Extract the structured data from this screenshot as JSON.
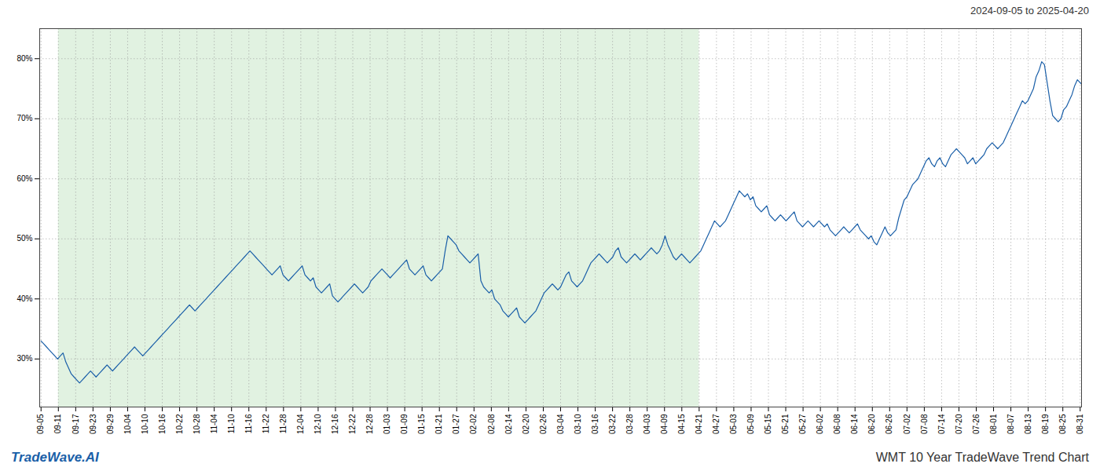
{
  "chart_data": {
    "type": "line",
    "title": "WMT 10 Year TradeWave Trend Chart",
    "subtitle": "2024-09-05 to 2025-04-20",
    "annotations": [
      {
        "text": "TradeWave.AI",
        "color": "#1a5fa8"
      }
    ],
    "color": "#1a5fa8",
    "grid": true,
    "shade": {
      "start": 6.3,
      "end": 239.4,
      "color": "#d4ecd4"
    },
    "ylim": [
      22,
      85
    ],
    "yticks": [
      {
        "value": 30,
        "label": "30%"
      },
      {
        "value": 40,
        "label": "40%"
      },
      {
        "value": 50,
        "label": "50%"
      },
      {
        "value": 60,
        "label": "60%"
      },
      {
        "value": 70,
        "label": "70%"
      },
      {
        "value": 80,
        "label": "80%"
      }
    ],
    "xlim": [
      -0.5,
      378.5
    ],
    "xticks": [
      {
        "value": 0,
        "label": "09-05"
      },
      {
        "value": 6.3,
        "label": "09-11"
      },
      {
        "value": 12.6,
        "label": "09-17"
      },
      {
        "value": 18.9,
        "label": "09-23"
      },
      {
        "value": 25.2,
        "label": "09-29"
      },
      {
        "value": 31.5,
        "label": "10-04"
      },
      {
        "value": 37.8,
        "label": "10-10"
      },
      {
        "value": 44.1,
        "label": "10-16"
      },
      {
        "value": 50.4,
        "label": "10-22"
      },
      {
        "value": 56.7,
        "label": "10-28"
      },
      {
        "value": 63,
        "label": "11-04"
      },
      {
        "value": 69.3,
        "label": "11-10"
      },
      {
        "value": 75.6,
        "label": "11-16"
      },
      {
        "value": 81.9,
        "label": "11-22"
      },
      {
        "value": 88.2,
        "label": "11-28"
      },
      {
        "value": 94.5,
        "label": "12-04"
      },
      {
        "value": 100.8,
        "label": "12-10"
      },
      {
        "value": 107.1,
        "label": "12-16"
      },
      {
        "value": 113.4,
        "label": "12-22"
      },
      {
        "value": 119.7,
        "label": "12-28"
      },
      {
        "value": 126,
        "label": "01-03"
      },
      {
        "value": 132.3,
        "label": "01-09"
      },
      {
        "value": 138.6,
        "label": "01-15"
      },
      {
        "value": 144.9,
        "label": "01-21"
      },
      {
        "value": 151.2,
        "label": "01-27"
      },
      {
        "value": 157.5,
        "label": "02-02"
      },
      {
        "value": 163.8,
        "label": "02-08"
      },
      {
        "value": 170.1,
        "label": "02-14"
      },
      {
        "value": 176.4,
        "label": "02-20"
      },
      {
        "value": 182.7,
        "label": "02-26"
      },
      {
        "value": 189,
        "label": "03-04"
      },
      {
        "value": 195.3,
        "label": "03-10"
      },
      {
        "value": 201.6,
        "label": "03-16"
      },
      {
        "value": 207.9,
        "label": "03-22"
      },
      {
        "value": 214.2,
        "label": "03-28"
      },
      {
        "value": 220.5,
        "label": "04-03"
      },
      {
        "value": 226.8,
        "label": "04-09"
      },
      {
        "value": 233.1,
        "label": "04-15"
      },
      {
        "value": 239.4,
        "label": "04-21"
      },
      {
        "value": 245.7,
        "label": "04-27"
      },
      {
        "value": 252,
        "label": "05-03"
      },
      {
        "value": 258.3,
        "label": "05-09"
      },
      {
        "value": 264.6,
        "label": "05-15"
      },
      {
        "value": 270.9,
        "label": "05-21"
      },
      {
        "value": 277.2,
        "label": "05-27"
      },
      {
        "value": 283.5,
        "label": "06-02"
      },
      {
        "value": 289.8,
        "label": "06-08"
      },
      {
        "value": 296.1,
        "label": "06-14"
      },
      {
        "value": 302.4,
        "label": "06-20"
      },
      {
        "value": 308.7,
        "label": "06-26"
      },
      {
        "value": 315,
        "label": "07-02"
      },
      {
        "value": 321.3,
        "label": "07-08"
      },
      {
        "value": 327.6,
        "label": "07-14"
      },
      {
        "value": 333.9,
        "label": "07-20"
      },
      {
        "value": 340.2,
        "label": "07-26"
      },
      {
        "value": 346.5,
        "label": "08-01"
      },
      {
        "value": 352.8,
        "label": "08-07"
      },
      {
        "value": 359.1,
        "label": "08-13"
      },
      {
        "value": 365.4,
        "label": "08-19"
      },
      {
        "value": 371.7,
        "label": "08-25"
      },
      {
        "value": 378,
        "label": "08-31"
      }
    ],
    "values": [
      33.0,
      32.5,
      32.0,
      31.5,
      31.0,
      30.5,
      30.0,
      30.5,
      31.0,
      29.5,
      28.5,
      27.5,
      27.0,
      26.5,
      26.0,
      26.5,
      27.0,
      27.5,
      28.0,
      27.5,
      27.0,
      27.5,
      28.0,
      28.5,
      29.0,
      28.5,
      28.0,
      28.5,
      29.0,
      29.5,
      30.0,
      30.5,
      31.0,
      31.5,
      32.0,
      31.5,
      31.0,
      30.5,
      31.0,
      31.5,
      32.0,
      32.5,
      33.0,
      33.5,
      34.0,
      34.5,
      35.0,
      35.5,
      36.0,
      36.5,
      37.0,
      37.5,
      38.0,
      38.5,
      39.0,
      38.5,
      38.0,
      38.5,
      39.0,
      39.5,
      40.0,
      40.5,
      41.0,
      41.5,
      42.0,
      42.5,
      43.0,
      43.5,
      44.0,
      44.5,
      45.0,
      45.5,
      46.0,
      46.5,
      47.0,
      47.5,
      48.0,
      47.5,
      47.0,
      46.5,
      46.0,
      45.5,
      45.0,
      44.5,
      44.0,
      44.5,
      45.0,
      45.5,
      44.0,
      43.5,
      43.0,
      43.5,
      44.0,
      44.5,
      45.0,
      45.5,
      44.0,
      43.5,
      43.0,
      43.5,
      42.0,
      41.5,
      41.0,
      41.5,
      42.0,
      42.5,
      40.5,
      40.0,
      39.5,
      40.0,
      40.5,
      41.0,
      41.5,
      42.0,
      42.5,
      42.0,
      41.5,
      41.0,
      41.5,
      42.0,
      43.0,
      43.5,
      44.0,
      44.5,
      45.0,
      44.5,
      44.0,
      43.5,
      44.0,
      44.5,
      45.0,
      45.5,
      46.0,
      46.5,
      45.0,
      44.5,
      44.0,
      44.5,
      45.0,
      45.5,
      44.0,
      43.5,
      43.0,
      43.5,
      44.0,
      44.5,
      45.0,
      48.0,
      50.5,
      50.0,
      49.5,
      49.0,
      48.0,
      47.5,
      47.0,
      46.5,
      46.0,
      46.5,
      47.0,
      47.5,
      43.0,
      42.0,
      41.5,
      41.0,
      41.5,
      40.0,
      39.5,
      39.0,
      38.0,
      37.5,
      37.0,
      37.5,
      38.0,
      38.5,
      37.0,
      36.5,
      36.0,
      36.5,
      37.0,
      37.5,
      38.0,
      39.0,
      40.0,
      41.0,
      41.5,
      42.0,
      42.5,
      42.0,
      41.5,
      42.0,
      43.0,
      44.0,
      44.5,
      43.0,
      42.5,
      42.0,
      42.5,
      43.0,
      44.0,
      45.0,
      46.0,
      46.5,
      47.0,
      47.5,
      47.0,
      46.5,
      46.0,
      46.5,
      47.0,
      48.0,
      48.5,
      47.0,
      46.5,
      46.0,
      46.5,
      47.0,
      47.5,
      47.0,
      46.5,
      47.0,
      47.5,
      48.0,
      48.5,
      48.0,
      47.5,
      48.0,
      49.0,
      50.5,
      49.0,
      48.0,
      47.0,
      46.5,
      47.0,
      47.5,
      47.0,
      46.5,
      46.0,
      46.5,
      47.0,
      47.5,
      48.0,
      49.0,
      50.0,
      51.0,
      52.0,
      53.0,
      52.5,
      52.0,
      52.5,
      53.0,
      54.0,
      55.0,
      56.0,
      57.0,
      58.0,
      57.5,
      57.0,
      57.5,
      56.5,
      57.0,
      55.5,
      55.0,
      54.5,
      55.0,
      55.5,
      54.0,
      53.5,
      53.0,
      53.5,
      54.0,
      53.5,
      53.0,
      53.5,
      54.0,
      54.5,
      53.0,
      52.5,
      52.0,
      52.5,
      53.0,
      52.5,
      52.0,
      52.5,
      53.0,
      52.5,
      52.0,
      52.5,
      51.5,
      51.0,
      50.5,
      51.0,
      51.5,
      52.0,
      51.5,
      51.0,
      51.5,
      52.0,
      52.5,
      51.5,
      51.0,
      50.5,
      50.0,
      50.5,
      49.5,
      49.0,
      50.0,
      51.0,
      52.0,
      51.0,
      50.5,
      51.0,
      51.5,
      53.5,
      55.0,
      56.5,
      57.0,
      58.0,
      59.0,
      59.5,
      60.0,
      61.0,
      62.0,
      63.0,
      63.5,
      62.5,
      62.0,
      63.0,
      63.5,
      62.5,
      62.0,
      63.0,
      64.0,
      64.5,
      65.0,
      64.5,
      64.0,
      63.5,
      62.5,
      63.0,
      63.5,
      62.5,
      63.0,
      63.5,
      64.0,
      65.0,
      65.5,
      66.0,
      65.5,
      65.0,
      65.5,
      66.0,
      67.0,
      68.0,
      69.0,
      70.0,
      71.0,
      72.0,
      73.0,
      72.5,
      73.0,
      74.0,
      75.0,
      77.0,
      78.0,
      79.5,
      79.0,
      76.0,
      73.0,
      70.5,
      70.0,
      69.5,
      70.0,
      71.5,
      72.0,
      73.0,
      74.0,
      75.5,
      76.5,
      76.0,
      75.5
    ]
  }
}
